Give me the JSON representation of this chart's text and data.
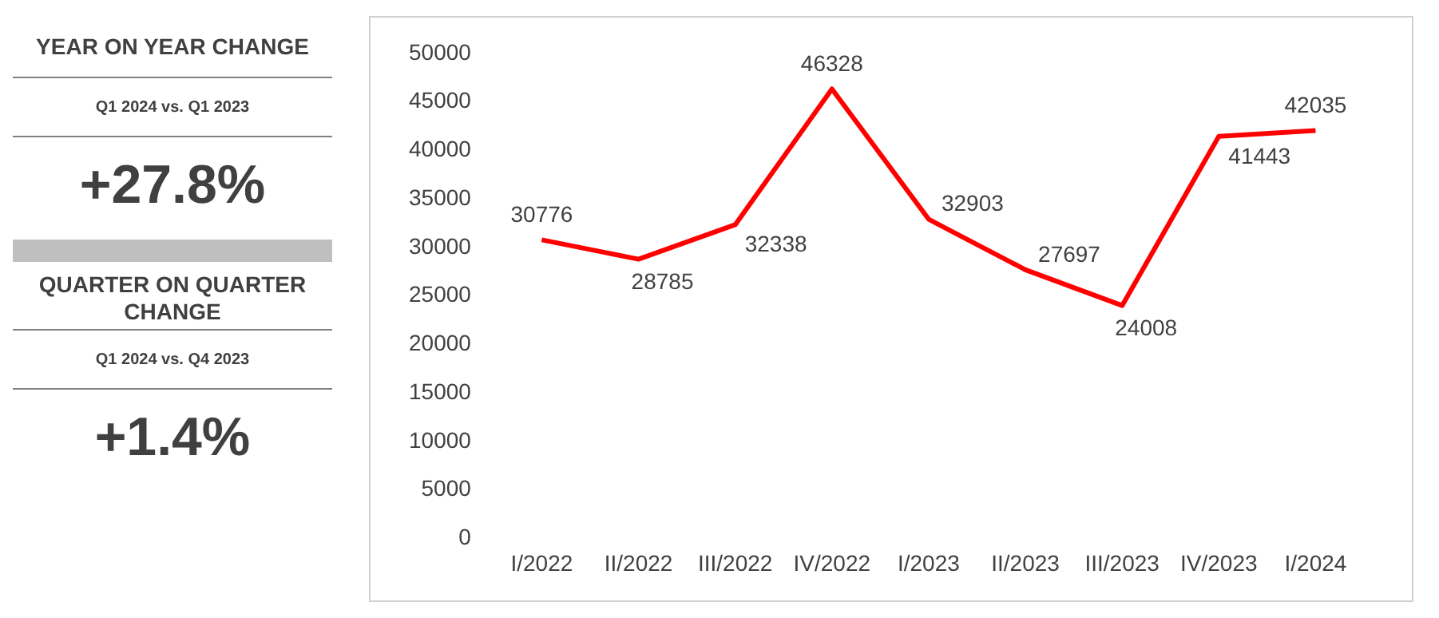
{
  "chart_data": [
    {
      "type": "other",
      "annotations": [
        "YEAR ON YEAR CHANGE",
        "Q1 2024 vs. Q1 2023",
        "+27.8%",
        "QUARTER ON QUARTER CHANGE",
        "Q1 2024 vs. Q4 2023",
        "+1.4%"
      ]
    },
    {
      "type": "line",
      "categories": [
        "I/2022",
        "II/2022",
        "III/2022",
        "IV/2022",
        "I/2023",
        "II/2023",
        "III/2023",
        "IV/2023",
        "I/2024"
      ],
      "series": [
        {
          "color": "#ff0000",
          "values": [
            30776,
            28785,
            32338,
            46328,
            32903,
            27697,
            24008,
            41443,
            42035
          ]
        }
      ],
      "ylim": [
        0,
        50000
      ],
      "yticks": [
        0,
        5000,
        10000,
        15000,
        20000,
        25000,
        30000,
        35000,
        40000,
        45000,
        50000
      ],
      "grid": false,
      "legend": false,
      "marker": "none",
      "line_style": "solid",
      "data_labels": true
    }
  ]
}
